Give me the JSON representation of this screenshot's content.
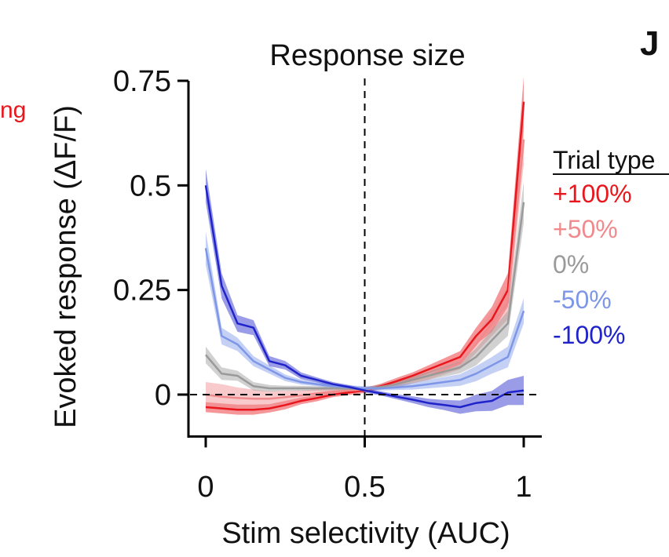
{
  "panel_label": "J",
  "edge_text": "ng",
  "chart_data": {
    "type": "line",
    "title": "Response size",
    "xlabel": "Stim selectivity (AUC)",
    "ylabel": "Evoked response (ΔF/F)",
    "xlim": [
      0,
      1
    ],
    "ylim": [
      -0.1,
      0.75
    ],
    "xticks": [
      0,
      0.5,
      1
    ],
    "xtick_labels": [
      "0",
      "0.5",
      "1"
    ],
    "yticks": [
      0,
      0.25,
      0.5,
      0.75
    ],
    "ytick_labels": [
      "0",
      "0.25",
      "0.5",
      "0.75"
    ],
    "reference_lines": {
      "x": 0.5,
      "y": 0
    },
    "grid": false,
    "legend": {
      "title": "Trial type",
      "position": "right"
    },
    "x": [
      0,
      0.05,
      0.1,
      0.15,
      0.2,
      0.25,
      0.3,
      0.35,
      0.4,
      0.45,
      0.5,
      0.55,
      0.6,
      0.65,
      0.7,
      0.75,
      0.8,
      0.85,
      0.9,
      0.95,
      1.0
    ],
    "series": [
      {
        "name": "+100%",
        "color": "#e8171d",
        "values": [
          -0.03,
          -0.033,
          -0.036,
          -0.036,
          -0.033,
          -0.025,
          -0.015,
          -0.008,
          0.0,
          0.005,
          0.01,
          0.02,
          0.032,
          0.045,
          0.06,
          0.075,
          0.09,
          0.14,
          0.18,
          0.25,
          0.7
        ],
        "error": [
          0.012,
          0.012,
          0.012,
          0.012,
          0.01,
          0.01,
          0.008,
          0.008,
          0.006,
          0.006,
          0.006,
          0.006,
          0.008,
          0.008,
          0.01,
          0.012,
          0.014,
          0.02,
          0.03,
          0.04,
          0.06
        ]
      },
      {
        "name": "+50%",
        "color": "#f08a8c",
        "values": [
          0.0,
          -0.005,
          -0.008,
          -0.01,
          -0.01,
          -0.006,
          -0.002,
          0.003,
          0.007,
          0.01,
          0.012,
          0.018,
          0.025,
          0.035,
          0.045,
          0.06,
          0.075,
          0.12,
          0.17,
          0.22,
          0.61
        ],
        "error": [
          0.03,
          0.03,
          0.025,
          0.022,
          0.018,
          0.015,
          0.012,
          0.01,
          0.008,
          0.006,
          0.006,
          0.006,
          0.008,
          0.008,
          0.01,
          0.012,
          0.014,
          0.02,
          0.03,
          0.04,
          0.06
        ]
      },
      {
        "name": "0%",
        "color": "#9a9a9a",
        "values": [
          0.095,
          0.05,
          0.045,
          0.02,
          0.015,
          0.015,
          0.015,
          0.015,
          0.015,
          0.014,
          0.013,
          0.018,
          0.025,
          0.035,
          0.045,
          0.055,
          0.065,
          0.09,
          0.13,
          0.17,
          0.46
        ],
        "error": [
          0.02,
          0.015,
          0.012,
          0.01,
          0.008,
          0.006,
          0.006,
          0.005,
          0.005,
          0.005,
          0.005,
          0.006,
          0.008,
          0.008,
          0.01,
          0.012,
          0.014,
          0.02,
          0.025,
          0.03,
          0.05
        ]
      },
      {
        "name": "-50%",
        "color": "#7e96e8",
        "values": [
          0.35,
          0.14,
          0.12,
          0.08,
          0.06,
          0.04,
          0.03,
          0.025,
          0.02,
          0.017,
          0.015,
          0.015,
          0.017,
          0.02,
          0.025,
          0.03,
          0.035,
          0.05,
          0.07,
          0.09,
          0.2
        ],
        "error": [
          0.04,
          0.02,
          0.016,
          0.012,
          0.01,
          0.008,
          0.006,
          0.005,
          0.005,
          0.005,
          0.005,
          0.005,
          0.006,
          0.008,
          0.01,
          0.012,
          0.014,
          0.018,
          0.02,
          0.025,
          0.03
        ]
      },
      {
        "name": "-100%",
        "color": "#1f23c9",
        "values": [
          0.5,
          0.26,
          0.17,
          0.16,
          0.08,
          0.07,
          0.045,
          0.035,
          0.025,
          0.018,
          0.01,
          0.003,
          -0.005,
          -0.012,
          -0.02,
          -0.025,
          -0.03,
          -0.02,
          -0.015,
          0.005,
          0.01
        ],
        "error": [
          0.04,
          0.03,
          0.02,
          0.018,
          0.012,
          0.01,
          0.008,
          0.006,
          0.005,
          0.005,
          0.005,
          0.005,
          0.006,
          0.008,
          0.01,
          0.012,
          0.016,
          0.02,
          0.024,
          0.03,
          0.035
        ]
      }
    ]
  }
}
